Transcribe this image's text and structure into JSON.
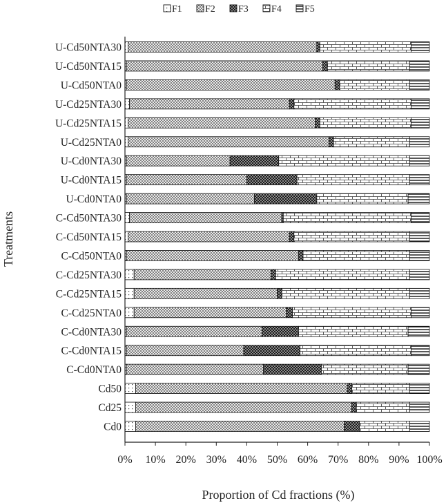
{
  "chart_data": {
    "type": "bar",
    "orientation": "horizontal",
    "stacked": "percent",
    "title": "",
    "xlabel": "Proportion of Cd fractions (%)",
    "ylabel": "Treatments",
    "xlim": [
      0,
      100
    ],
    "x_ticks": [
      "0%",
      "10%",
      "20%",
      "30%",
      "40%",
      "50%",
      "60%",
      "70%",
      "80%",
      "90%",
      "100%"
    ],
    "legend_position": "top",
    "grid": false,
    "categories": [
      "U-Cd50NTA30",
      "U-Cd50NTA15",
      "U-Cd50NTA0",
      "U-Cd25NTA30",
      "U-Cd25NTA15",
      "U-Cd25NTA0",
      "U-Cd0NTA30",
      "U-Cd0NTA15",
      "U-Cd0NTA0",
      "C-Cd50NTA30",
      "C-Cd50NTA15",
      "C-Cd50NTA0",
      "C-Cd25NTA30",
      "C-Cd25NTA15",
      "C-Cd25NTA0",
      "C-Cd0NTA30",
      "C-Cd0NTA15",
      "C-Cd0NTA0",
      "Cd50",
      "Cd25",
      "Cd0"
    ],
    "series": [
      {
        "name": "F1",
        "pattern": "dots",
        "values": [
          1,
          0.5,
          0.5,
          1.5,
          1,
          1,
          0.5,
          0.5,
          0.5,
          1.5,
          1,
          0.5,
          3,
          3,
          3,
          0.5,
          0.5,
          0.5,
          3.5,
          3.5,
          3.5
        ]
      },
      {
        "name": "F2",
        "pattern": "crosshatch",
        "values": [
          62,
          64.5,
          68.5,
          52.5,
          61.5,
          66,
          34,
          39.5,
          42,
          50,
          53,
          56.5,
          45,
          47,
          50,
          44.5,
          38.5,
          45,
          69.5,
          71,
          68.5
        ]
      },
      {
        "name": "F3",
        "pattern": "dark-crosshatch",
        "values": [
          1,
          1.5,
          1.5,
          1.5,
          1.5,
          1.5,
          16,
          16.5,
          20.5,
          0.5,
          1.5,
          1.5,
          1.5,
          1.5,
          2,
          12,
          18.5,
          19,
          1.5,
          1.5,
          5
        ]
      },
      {
        "name": "F4",
        "pattern": "brick",
        "values": [
          30,
          27,
          23,
          38.5,
          30,
          25,
          43,
          37,
          30,
          42,
          38,
          35,
          44,
          42,
          39,
          36,
          36.5,
          28.5,
          19,
          17.5,
          16.5
        ]
      },
      {
        "name": "F5",
        "pattern": "horizontal-lines",
        "values": [
          6,
          6.5,
          6.5,
          6,
          6,
          6.5,
          6.5,
          6.5,
          7,
          6,
          6.5,
          6.5,
          6.5,
          6.5,
          6,
          7,
          6,
          7,
          6.5,
          6.5,
          6.5
        ]
      }
    ]
  }
}
